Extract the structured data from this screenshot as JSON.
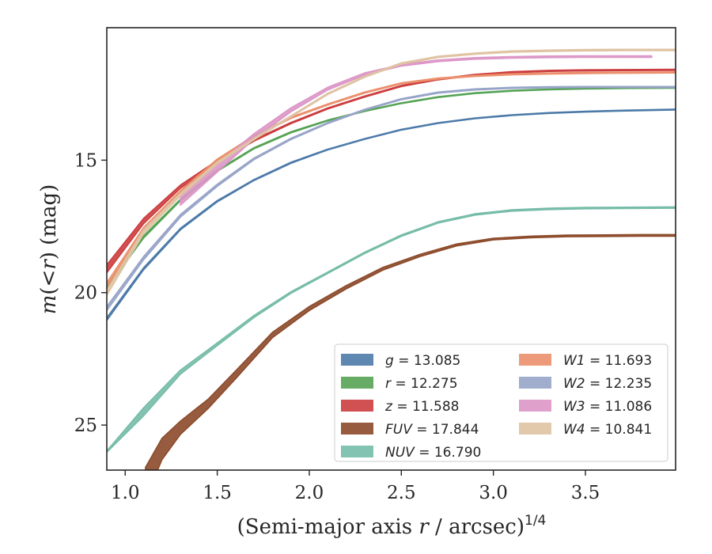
{
  "chart_data": {
    "type": "area",
    "xlabel": "(Semi-major axis r / arcsec)^1/4",
    "xlabel_parts": {
      "main": "(Semi-major axis ",
      "var": "r",
      "rest": " / arcsec)",
      "sup": "1/4"
    },
    "ylabel": "m(< r) (mag)",
    "ylabel_parts": {
      "var": "m",
      "open": "(<",
      "var2": "r",
      "close": ") (mag)"
    },
    "xlim": [
      0.9,
      3.99
    ],
    "ylim": [
      26.7,
      10.0
    ],
    "y_inverted": true,
    "x_ticks": [
      {
        "value": 1.0,
        "label": "1.0"
      },
      {
        "value": 1.5,
        "label": "1.5"
      },
      {
        "value": 2.0,
        "label": "2.0"
      },
      {
        "value": 2.5,
        "label": "2.5"
      },
      {
        "value": 3.0,
        "label": "3.0"
      },
      {
        "value": 3.5,
        "label": "3.5"
      }
    ],
    "y_ticks": [
      {
        "value": 15,
        "label": "15"
      },
      {
        "value": 20,
        "label": "20"
      },
      {
        "value": 25,
        "label": "25"
      }
    ],
    "grid": false,
    "legend_position": "lower-right",
    "series": [
      {
        "name": "g",
        "value": "13.085",
        "color": "#4c7aa8",
        "x": [
          0.9,
          1.1,
          1.3,
          1.5,
          1.7,
          1.9,
          2.1,
          2.3,
          2.5,
          2.7,
          2.9,
          3.1,
          3.3,
          3.5,
          3.7,
          3.99
        ],
        "y": [
          21.0,
          19.1,
          17.6,
          16.55,
          15.75,
          15.1,
          14.6,
          14.2,
          13.85,
          13.6,
          13.42,
          13.3,
          13.22,
          13.17,
          13.13,
          13.09
        ],
        "width": [
          0.1,
          0.08,
          0.06,
          0.05,
          0.04,
          0.04,
          0.03,
          0.03,
          0.03,
          0.03,
          0.03,
          0.03,
          0.03,
          0.03,
          0.03,
          0.03
        ]
      },
      {
        "name": "r",
        "value": "12.275",
        "color": "#55a354",
        "x": [
          0.9,
          1.1,
          1.3,
          1.5,
          1.7,
          1.9,
          2.1,
          2.3,
          2.5,
          2.7,
          2.9,
          3.1,
          3.3,
          3.5,
          3.7,
          3.99
        ],
        "y": [
          19.8,
          17.9,
          16.5,
          15.4,
          14.55,
          13.95,
          13.5,
          13.15,
          12.85,
          12.62,
          12.47,
          12.38,
          12.33,
          12.3,
          12.28,
          12.27
        ],
        "width": [
          0.1,
          0.08,
          0.06,
          0.05,
          0.04,
          0.04,
          0.03,
          0.03,
          0.03,
          0.03,
          0.03,
          0.03,
          0.03,
          0.03,
          0.03,
          0.03
        ]
      },
      {
        "name": "z",
        "value": "11.588",
        "color": "#cc3d3f",
        "x": [
          0.9,
          1.1,
          1.3,
          1.5,
          1.7,
          1.9,
          2.1,
          2.3,
          2.5,
          2.7,
          2.9,
          3.1,
          3.3,
          3.5,
          3.7,
          3.99
        ],
        "y": [
          19.1,
          17.3,
          16.0,
          15.05,
          14.25,
          13.6,
          13.05,
          12.6,
          12.2,
          11.95,
          11.78,
          11.68,
          11.63,
          11.61,
          11.6,
          11.59
        ],
        "width": [
          0.3,
          0.2,
          0.12,
          0.08,
          0.06,
          0.05,
          0.04,
          0.04,
          0.04,
          0.04,
          0.04,
          0.04,
          0.04,
          0.04,
          0.04,
          0.04
        ]
      },
      {
        "name": "FUV",
        "value": "17.844",
        "color": "#8c4a2a",
        "x": [
          1.11,
          1.2,
          1.3,
          1.45,
          1.6,
          1.8,
          2.0,
          2.2,
          2.4,
          2.6,
          2.8,
          3.0,
          3.2,
          3.4,
          3.6,
          3.8,
          3.99
        ],
        "y": [
          27.2,
          25.9,
          25.1,
          24.2,
          23.1,
          21.6,
          20.6,
          19.8,
          19.1,
          18.6,
          18.2,
          17.98,
          17.9,
          17.86,
          17.85,
          17.84,
          17.84
        ],
        "width": [
          1.2,
          0.8,
          0.5,
          0.35,
          0.3,
          0.2,
          0.15,
          0.12,
          0.1,
          0.08,
          0.07,
          0.06,
          0.06,
          0.06,
          0.06,
          0.06,
          0.06
        ]
      },
      {
        "name": "NUV",
        "value": "16.790",
        "color": "#76bca8",
        "x": [
          0.9,
          1.1,
          1.3,
          1.5,
          1.7,
          1.9,
          2.1,
          2.3,
          2.5,
          2.7,
          2.9,
          3.1,
          3.3,
          3.5,
          3.7,
          3.99
        ],
        "y": [
          26.0,
          24.5,
          23.0,
          21.95,
          20.9,
          20.0,
          19.25,
          18.5,
          17.85,
          17.35,
          17.05,
          16.9,
          16.84,
          16.81,
          16.8,
          16.79
        ],
        "width": [
          0.05,
          0.3,
          0.15,
          0.1,
          0.08,
          0.06,
          0.05,
          0.05,
          0.05,
          0.05,
          0.05,
          0.05,
          0.05,
          0.05,
          0.05,
          0.05
        ]
      },
      {
        "name": "W1",
        "value": "11.693",
        "color": "#eb8f6c",
        "x": [
          0.9,
          1.1,
          1.3,
          1.5,
          1.7,
          1.9,
          2.1,
          2.3,
          2.5,
          2.7,
          2.9,
          3.1,
          3.3,
          3.5,
          3.7,
          3.99
        ],
        "y": [
          19.7,
          17.6,
          16.2,
          15.0,
          14.1,
          13.4,
          12.9,
          12.45,
          12.1,
          11.92,
          11.82,
          11.76,
          11.73,
          11.71,
          11.7,
          11.69
        ],
        "width": [
          0.15,
          0.12,
          0.1,
          0.08,
          0.06,
          0.05,
          0.04,
          0.04,
          0.04,
          0.04,
          0.04,
          0.04,
          0.04,
          0.04,
          0.04,
          0.04
        ]
      },
      {
        "name": "W2",
        "value": "12.235",
        "color": "#97a4c8",
        "x": [
          0.9,
          1.1,
          1.3,
          1.5,
          1.7,
          1.9,
          2.1,
          2.3,
          2.5,
          2.7,
          2.9,
          3.1,
          3.3,
          3.5,
          3.7,
          3.99
        ],
        "y": [
          20.6,
          18.7,
          17.1,
          15.95,
          14.95,
          14.2,
          13.6,
          13.1,
          12.7,
          12.45,
          12.33,
          12.27,
          12.25,
          12.24,
          12.24,
          12.24
        ],
        "width": [
          0.15,
          0.12,
          0.1,
          0.08,
          0.06,
          0.05,
          0.04,
          0.04,
          0.04,
          0.04,
          0.04,
          0.04,
          0.04,
          0.04,
          0.04,
          0.04
        ]
      },
      {
        "name": "W3",
        "value": "11.086",
        "color": "#dc96c7",
        "x": [
          1.3,
          1.5,
          1.7,
          1.9,
          2.1,
          2.3,
          2.5,
          2.7,
          2.9,
          3.1,
          3.3,
          3.5,
          3.7,
          3.86
        ],
        "y": [
          16.5,
          15.3,
          14.1,
          13.1,
          12.3,
          11.75,
          11.42,
          11.25,
          11.16,
          11.12,
          11.1,
          11.09,
          11.09,
          11.09
        ],
        "width": [
          0.4,
          0.3,
          0.2,
          0.15,
          0.1,
          0.08,
          0.06,
          0.06,
          0.06,
          0.06,
          0.06,
          0.06,
          0.06,
          0.06
        ]
      },
      {
        "name": "W4",
        "value": "10.841",
        "color": "#dfc3a3",
        "x": [
          0.9,
          1.1,
          1.3,
          1.5,
          1.7,
          1.9,
          2.1,
          2.3,
          2.5,
          2.7,
          2.9,
          3.1,
          3.3,
          3.5,
          3.7,
          3.99
        ],
        "y": [
          20.0,
          17.7,
          16.3,
          15.1,
          14.2,
          13.35,
          12.5,
          11.85,
          11.35,
          11.1,
          10.98,
          10.9,
          10.87,
          10.85,
          10.84,
          10.84
        ],
        "width": [
          0.2,
          0.15,
          0.1,
          0.08,
          0.06,
          0.05,
          0.05,
          0.05,
          0.05,
          0.05,
          0.05,
          0.05,
          0.05,
          0.05,
          0.05,
          0.05
        ]
      }
    ]
  }
}
